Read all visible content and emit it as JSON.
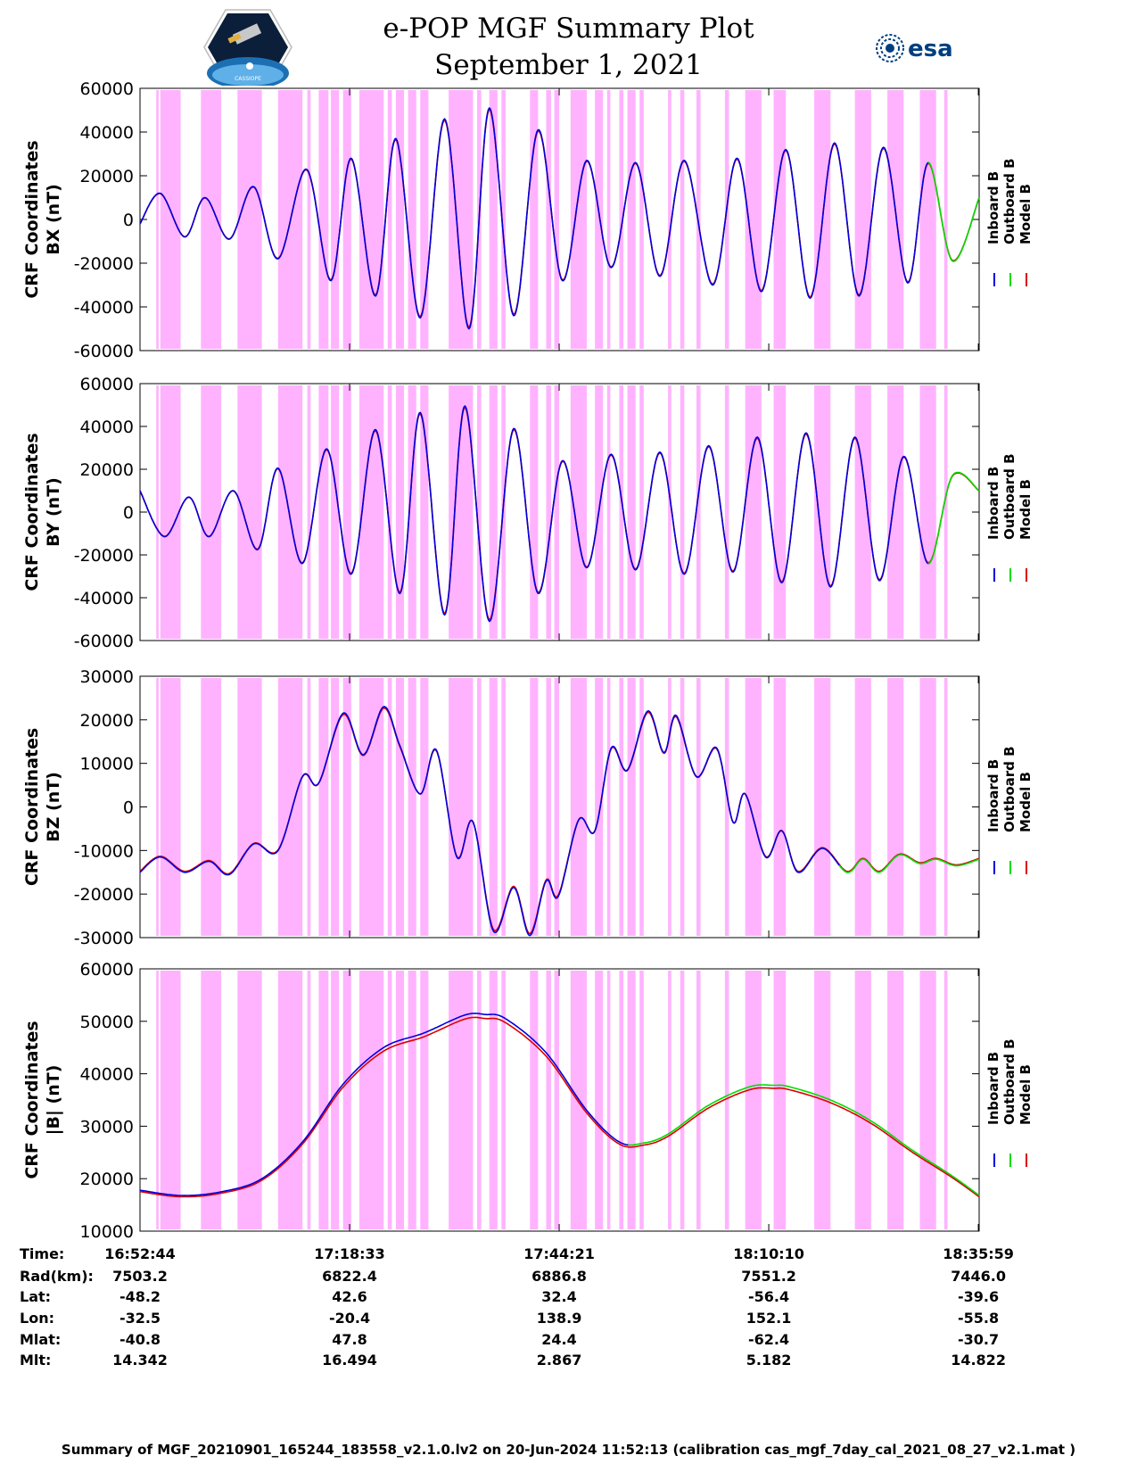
{
  "header": {
    "title_line1": "e-POP MGF Summary Plot",
    "title_line2": "September 1, 2021",
    "logo_left_text": "CASSIOPE",
    "logo_right_text": "esa"
  },
  "colors": {
    "inboard": "#0000dd",
    "outboard": "#00dd00",
    "model": "#dd0000",
    "shade": "#ffb3ff"
  },
  "chart_data": [
    {
      "type": "line",
      "ylabel_line1": "CRF Coordinates",
      "ylabel_line2": "BX (nT)",
      "ylim": [
        -60000,
        60000
      ],
      "yticks": [
        "60000",
        "40000",
        "20000",
        "0",
        "-20000",
        "-40000",
        "-60000"
      ],
      "legend": [
        "Inboard B",
        "Outboard B",
        "Model B"
      ],
      "x_minutes": [
        0,
        2.5,
        5.5,
        8,
        11,
        14,
        17,
        20.5,
        23.5,
        26,
        29,
        31.5,
        34.5,
        37.5,
        40.5,
        43,
        46,
        49,
        52,
        55,
        58,
        61,
        64,
        67,
        70.5,
        73.5,
        76.5,
        79.5,
        82.5,
        85.5,
        88.5,
        91.5,
        94.5,
        97,
        100,
        103.3
      ],
      "values": [
        -2000,
        12000,
        -8000,
        10000,
        -9000,
        15000,
        -18000,
        23000,
        -28000,
        28000,
        -35000,
        37000,
        -45000,
        46000,
        -50000,
        51000,
        -44000,
        41000,
        -28000,
        27000,
        -22000,
        26000,
        -26000,
        27000,
        -30000,
        28000,
        -33000,
        32000,
        -36000,
        35000,
        -35000,
        33000,
        -29000,
        26000,
        -19000,
        10000
      ]
    },
    {
      "type": "line",
      "ylabel_line1": "CRF Coordinates",
      "ylabel_line2": "BY (nT)",
      "ylim": [
        -60000,
        60000
      ],
      "yticks": [
        "60000",
        "40000",
        "20000",
        "0",
        "-20000",
        "-40000",
        "-60000"
      ],
      "legend": [
        "Inboard B",
        "Outboard B",
        "Model B"
      ],
      "x_minutes": [
        0,
        3,
        6,
        8.5,
        11.5,
        14.5,
        17,
        20,
        23,
        26,
        29,
        32,
        34.5,
        37.5,
        40,
        43,
        46,
        49,
        52,
        55,
        58,
        61,
        64,
        67,
        70,
        73,
        76,
        79,
        82,
        85,
        88,
        91,
        94,
        97,
        100,
        103.3
      ],
      "values": [
        10000,
        -11500,
        7000,
        -11500,
        10000,
        -17500,
        20500,
        -24000,
        29500,
        -29000,
        38500,
        -38000,
        46500,
        -48000,
        49500,
        -51000,
        39000,
        -38000,
        24000,
        -26000,
        27000,
        -27000,
        28000,
        -29000,
        31000,
        -28000,
        35000,
        -33000,
        37000,
        -35000,
        35000,
        -32000,
        26000,
        -24000,
        17000,
        10000
      ],
      "note": "green segment near end around minute 97-103"
    },
    {
      "type": "line",
      "ylabel_line1": "CRF Coordinates",
      "ylabel_line2": "BZ (nT)",
      "ylim": [
        -30000,
        30000
      ],
      "yticks": [
        "30000",
        "20000",
        "10000",
        "0",
        "-10000",
        "-20000",
        "-30000"
      ],
      "legend": [
        "Inboard B",
        "Outboard B",
        "Model B"
      ],
      "x_minutes": [
        0,
        2.5,
        5.5,
        8.5,
        11,
        14,
        17,
        20,
        22,
        25,
        27.5,
        30,
        32,
        34.5,
        36.5,
        39,
        41,
        43.5,
        46,
        48,
        50,
        51.5,
        54,
        56,
        58,
        60,
        62.5,
        64.5,
        66,
        68.5,
        71,
        73,
        74.5,
        77,
        79,
        81,
        84,
        87,
        89,
        91,
        93.5,
        96,
        98,
        100.5,
        103.3
      ],
      "values": [
        -15000,
        -11500,
        -15000,
        -12500,
        -15500,
        -8500,
        -10000,
        7000,
        5500,
        21500,
        12000,
        23000,
        14000,
        3000,
        13000,
        -11500,
        -3500,
        -28500,
        -18500,
        -29500,
        -17000,
        -20500,
        -3000,
        -5500,
        13500,
        8500,
        22000,
        12500,
        21000,
        7000,
        13500,
        -3500,
        3000,
        -11500,
        -5500,
        -15000,
        -9500,
        -15000,
        -12000,
        -15000,
        -11000,
        -13000,
        -12000,
        -13500,
        -12000
      ]
    },
    {
      "type": "line",
      "ylabel_line1": "CRF Coordinates",
      "ylabel_line2": "|B| (nT)",
      "ylim": [
        10000,
        60000
      ],
      "yticks": [
        "60000",
        "50000",
        "40000",
        "30000",
        "20000",
        "10000"
      ],
      "legend": [
        "Inboard B",
        "Outboard B",
        "Model B"
      ],
      "x_minutes": [
        0,
        5,
        10,
        15,
        20,
        25,
        30,
        35,
        40,
        42.5,
        45,
        50,
        55,
        59,
        62,
        65,
        70,
        75,
        78,
        80,
        85,
        90,
        95,
        100,
        103.3
      ],
      "values": [
        17800,
        16800,
        17500,
        20000,
        27000,
        38000,
        45000,
        47800,
        51200,
        51300,
        50500,
        44000,
        33000,
        27000,
        26800,
        28500,
        34000,
        37500,
        37800,
        37500,
        35000,
        31000,
        25500,
        20500,
        16800
      ]
    }
  ],
  "ephemeris": {
    "labels": [
      "Time:",
      "Rad(km):",
      "Lat:",
      "Lon:",
      "Mlat:",
      "Mlt:"
    ],
    "columns": [
      [
        "16:52:44",
        "7503.2",
        "-48.2",
        "-32.5",
        "-40.8",
        "14.342"
      ],
      [
        "17:18:33",
        "6822.4",
        "42.6",
        "-20.4",
        "47.8",
        "16.494"
      ],
      [
        "17:44:21",
        "6886.8",
        "32.4",
        "138.9",
        "24.4",
        "2.867"
      ],
      [
        "18:10:10",
        "7551.2",
        "-56.4",
        "152.1",
        "-62.4",
        "5.182"
      ],
      [
        "18:35:59",
        "7446.0",
        "-39.6",
        "-55.8",
        "-30.7",
        "14.822"
      ]
    ]
  },
  "shaded_intervals_minutes": [
    [
      2,
      2.3
    ],
    [
      2.5,
      5
    ],
    [
      7.5,
      10
    ],
    [
      12,
      15
    ],
    [
      17,
      20
    ],
    [
      20.6,
      21
    ],
    [
      22,
      23.2
    ],
    [
      23.5,
      24.5
    ],
    [
      25,
      26
    ],
    [
      27,
      30
    ],
    [
      30.5,
      31
    ],
    [
      31.5,
      32.5
    ],
    [
      33,
      34
    ],
    [
      34.5,
      35.5
    ],
    [
      38,
      41
    ],
    [
      41.5,
      42
    ],
    [
      43,
      44
    ],
    [
      44.5,
      45
    ],
    [
      48,
      49
    ],
    [
      50,
      50.6
    ],
    [
      51,
      51.6
    ],
    [
      53,
      55
    ],
    [
      56,
      57
    ],
    [
      57.5,
      57.9
    ],
    [
      59,
      59.5
    ],
    [
      60,
      61
    ],
    [
      61.5,
      62
    ],
    [
      65,
      65.4
    ],
    [
      66.5,
      67
    ],
    [
      68.5,
      69
    ],
    [
      72,
      72.5
    ],
    [
      74.5,
      76.5
    ],
    [
      78,
      79.5
    ],
    [
      83,
      85
    ],
    [
      88,
      90
    ],
    [
      92,
      94
    ],
    [
      96,
      98
    ],
    [
      99,
      99.4
    ]
  ],
  "footer_text": "Summary of MGF_20210901_165244_183558_v2.1.0.lv2 on 20-Jun-2024 11:52:13 (calibration cas_mgf_7day_cal_2021_08_27_v2.1.mat )"
}
